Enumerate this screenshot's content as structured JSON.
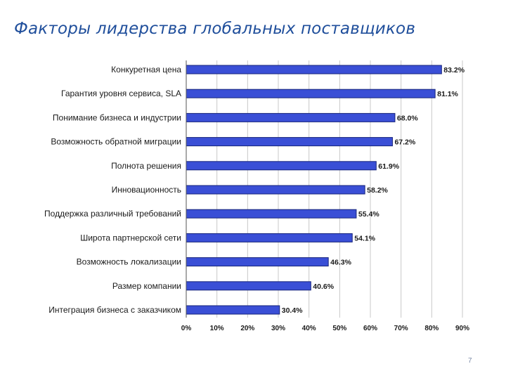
{
  "slide": {
    "title": "Факторы лидерства глобальных поставщиков",
    "page_number": "7"
  },
  "colors": {
    "title": "#1f4e9b",
    "bar_fill": "#3a4fd6",
    "bar_stroke": "#16237a",
    "grid": "#c8c8c8"
  },
  "chart_data": {
    "type": "bar",
    "orientation": "horizontal",
    "categories": [
      "Конкуретная цена",
      "Гарантия уровня сервиса, SLA",
      "Понимание бизнеса и индустрии",
      "Возможность обратной миграции",
      "Полнота решения",
      "Инновационность",
      "Поддержка различный требований",
      "Широта партнерской сети",
      "Возможность локализации",
      "Размер компании",
      "Интеграция бизнеса с заказчиком"
    ],
    "values": [
      83.2,
      81.1,
      68.0,
      67.2,
      61.9,
      58.2,
      55.4,
      54.1,
      46.3,
      40.6,
      30.4
    ],
    "value_labels": [
      "83.2%",
      "81.1%",
      "68.0%",
      "67.2%",
      "61.9%",
      "58.2%",
      "55.4%",
      "54.1%",
      "46.3%",
      "40.6%",
      "30.4%"
    ],
    "x_ticks": [
      0,
      10,
      20,
      30,
      40,
      50,
      60,
      70,
      80,
      90
    ],
    "x_tick_labels": [
      "0%",
      "10%",
      "20%",
      "30%",
      "40%",
      "50%",
      "60%",
      "70%",
      "80%",
      "90%"
    ],
    "xlim": [
      0,
      90
    ],
    "grid": true,
    "title": "",
    "xlabel": "",
    "ylabel": ""
  }
}
